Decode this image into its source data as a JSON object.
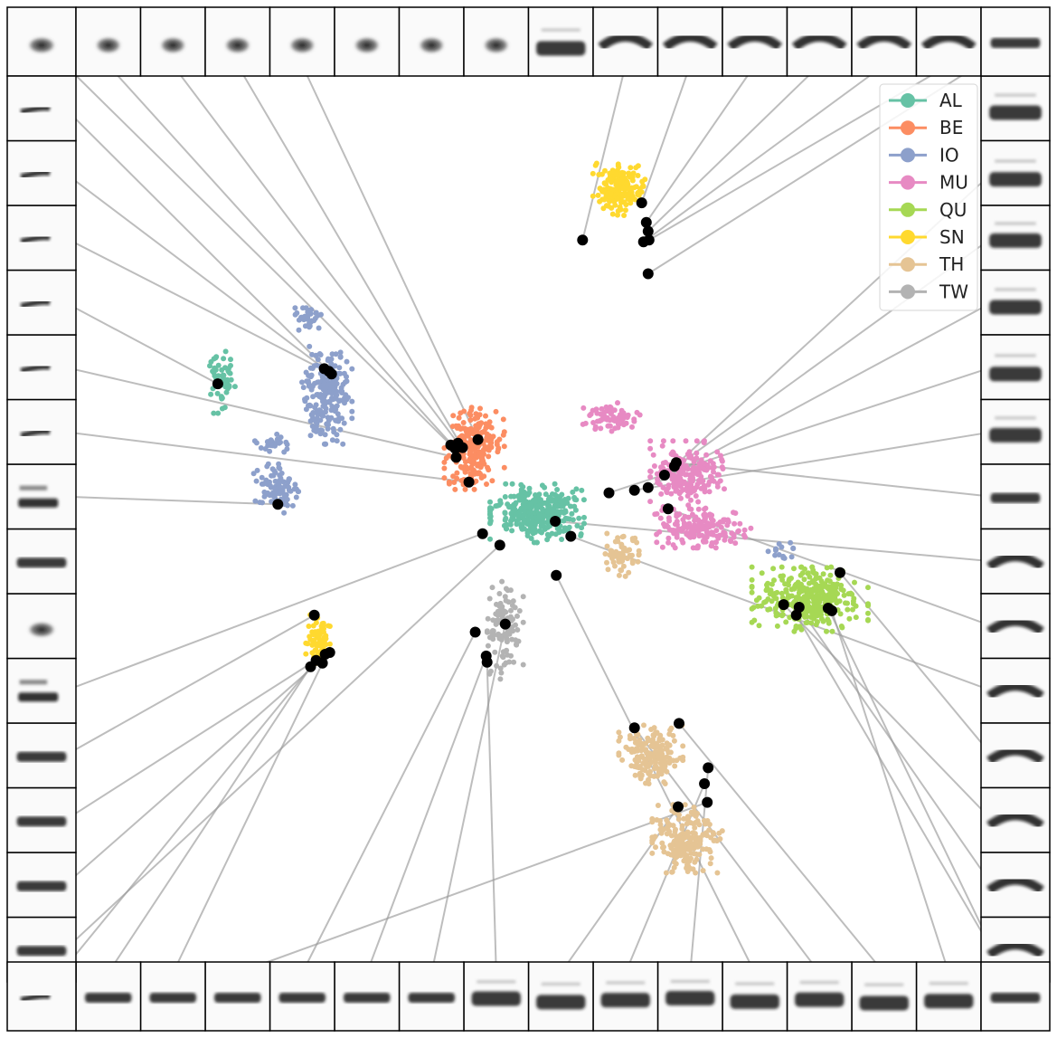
{
  "chart_data": {
    "type": "scatter",
    "title": "",
    "xlabel": "",
    "ylabel": "",
    "grid": false,
    "axes_visible": false,
    "legend_placement": "top-right",
    "legend": [
      "AL",
      "BE",
      "IO",
      "MU",
      "QU",
      "SN",
      "TH",
      "TW"
    ],
    "colors": {
      "AL": "#66c2a5",
      "BE": "#fc8d62",
      "IO": "#8da0cb",
      "MU": "#e78ac3",
      "QU": "#a6d854",
      "SN": "#ffd92f",
      "TH": "#e5c494",
      "TW": "#b3b3b3",
      "highlight": "#000000",
      "connector": "#999999"
    },
    "series": [
      {
        "name": "AL",
        "clusters": [
          {
            "x": 0.505,
            "y": 0.493,
            "rx": 0.047,
            "ry": 0.03,
            "n": 340
          },
          {
            "x": 0.158,
            "y": 0.345,
            "rx": 0.016,
            "ry": 0.032,
            "n": 55
          }
        ]
      },
      {
        "name": "BE",
        "clusters": [
          {
            "x": 0.436,
            "y": 0.42,
            "rx": 0.03,
            "ry": 0.042,
            "n": 230
          }
        ]
      },
      {
        "name": "IO",
        "clusters": [
          {
            "x": 0.274,
            "y": 0.36,
            "rx": 0.025,
            "ry": 0.05,
            "n": 210
          },
          {
            "x": 0.222,
            "y": 0.465,
            "rx": 0.026,
            "ry": 0.025,
            "n": 85
          },
          {
            "x": 0.252,
            "y": 0.27,
            "rx": 0.014,
            "ry": 0.015,
            "n": 35
          },
          {
            "x": 0.215,
            "y": 0.415,
            "rx": 0.02,
            "ry": 0.01,
            "n": 25
          },
          {
            "x": 0.77,
            "y": 0.535,
            "rx": 0.015,
            "ry": 0.008,
            "n": 14
          }
        ]
      },
      {
        "name": "MU",
        "clusters": [
          {
            "x": 0.67,
            "y": 0.45,
            "rx": 0.037,
            "ry": 0.035,
            "n": 200
          },
          {
            "x": 0.685,
            "y": 0.51,
            "rx": 0.05,
            "ry": 0.02,
            "n": 170
          },
          {
            "x": 0.585,
            "y": 0.385,
            "rx": 0.03,
            "ry": 0.015,
            "n": 70
          }
        ]
      },
      {
        "name": "QU",
        "clusters": [
          {
            "x": 0.805,
            "y": 0.59,
            "rx": 0.058,
            "ry": 0.033,
            "n": 330
          }
        ]
      },
      {
        "name": "SN",
        "clusters": [
          {
            "x": 0.595,
            "y": 0.125,
            "rx": 0.026,
            "ry": 0.03,
            "n": 170
          },
          {
            "x": 0.264,
            "y": 0.635,
            "rx": 0.012,
            "ry": 0.025,
            "n": 75
          }
        ]
      },
      {
        "name": "TH",
        "clusters": [
          {
            "x": 0.63,
            "y": 0.765,
            "rx": 0.032,
            "ry": 0.03,
            "n": 180
          },
          {
            "x": 0.67,
            "y": 0.86,
            "rx": 0.035,
            "ry": 0.035,
            "n": 190
          },
          {
            "x": 0.595,
            "y": 0.54,
            "rx": 0.02,
            "ry": 0.022,
            "n": 60
          }
        ]
      },
      {
        "name": "TW",
        "clusters": [
          {
            "x": 0.47,
            "y": 0.625,
            "rx": 0.018,
            "ry": 0.05,
            "n": 110
          }
        ]
      }
    ],
    "highlighted_points": [
      [
        0.271,
        0.33
      ],
      [
        0.276,
        0.333
      ],
      [
        0.279,
        0.336
      ],
      [
        0.154,
        0.347
      ],
      [
        0.41,
        0.416
      ],
      [
        0.415,
        0.42
      ],
      [
        0.418,
        0.414
      ],
      [
        0.423,
        0.419
      ],
      [
        0.416,
        0.43
      ],
      [
        0.44,
        0.41
      ],
      [
        0.43,
        0.458
      ],
      [
        0.22,
        0.483
      ],
      [
        0.445,
        0.516
      ],
      [
        0.464,
        0.529
      ],
      [
        0.525,
        0.502
      ],
      [
        0.542,
        0.519
      ],
      [
        0.526,
        0.563
      ],
      [
        0.555,
        0.185
      ],
      [
        0.62,
        0.143
      ],
      [
        0.625,
        0.165
      ],
      [
        0.627,
        0.175
      ],
      [
        0.622,
        0.187
      ],
      [
        0.628,
        0.185
      ],
      [
        0.627,
        0.223
      ],
      [
        0.584,
        0.47
      ],
      [
        0.612,
        0.467
      ],
      [
        0.627,
        0.464
      ],
      [
        0.645,
        0.45
      ],
      [
        0.656,
        0.44
      ],
      [
        0.658,
        0.436
      ],
      [
        0.649,
        0.488
      ],
      [
        0.838,
        0.56
      ],
      [
        0.776,
        0.596
      ],
      [
        0.793,
        0.599
      ],
      [
        0.79,
        0.608
      ],
      [
        0.825,
        0.6
      ],
      [
        0.829,
        0.603
      ],
      [
        0.26,
        0.608
      ],
      [
        0.272,
        0.652
      ],
      [
        0.277,
        0.65
      ],
      [
        0.262,
        0.659
      ],
      [
        0.256,
        0.666
      ],
      [
        0.269,
        0.662
      ],
      [
        0.437,
        0.627
      ],
      [
        0.47,
        0.618
      ],
      [
        0.449,
        0.654
      ],
      [
        0.45,
        0.661
      ],
      [
        0.612,
        0.735
      ],
      [
        0.661,
        0.73
      ],
      [
        0.693,
        0.78
      ],
      [
        0.689,
        0.798
      ],
      [
        0.66,
        0.824
      ],
      [
        0.692,
        0.819
      ]
    ]
  },
  "thumbnails": {
    "count_per_side": 14,
    "top": [
      "wide-blob",
      "wide-blob",
      "wide-blob",
      "wide-blob",
      "wide-blob",
      "wide-blob",
      "wide-blob",
      "wide-bar",
      "arch",
      "arch",
      "arch",
      "arch",
      "arch",
      "arch"
    ],
    "right": [
      "wide-bar",
      "wide-bar",
      "wide-bar",
      "wide-bar",
      "wide-bar",
      "wide-bar",
      "bar",
      "arch",
      "arch",
      "arch",
      "arch",
      "arch",
      "arch",
      "arch"
    ],
    "bottom": [
      "wide-bar",
      "wide-bar",
      "wide-bar",
      "wide-bar",
      "wide-bar",
      "wide-bar",
      "wide-bar",
      "wide-bar",
      "bar",
      "bar",
      "bar",
      "bar",
      "bar",
      "bar"
    ],
    "left": [
      "bar",
      "bar",
      "bar",
      "bar",
      "stack",
      "wide-blob",
      "bar",
      "stack",
      "thin-line",
      "thin-line",
      "thin-line",
      "thin-line",
      "thin-line",
      "thin-line"
    ]
  }
}
